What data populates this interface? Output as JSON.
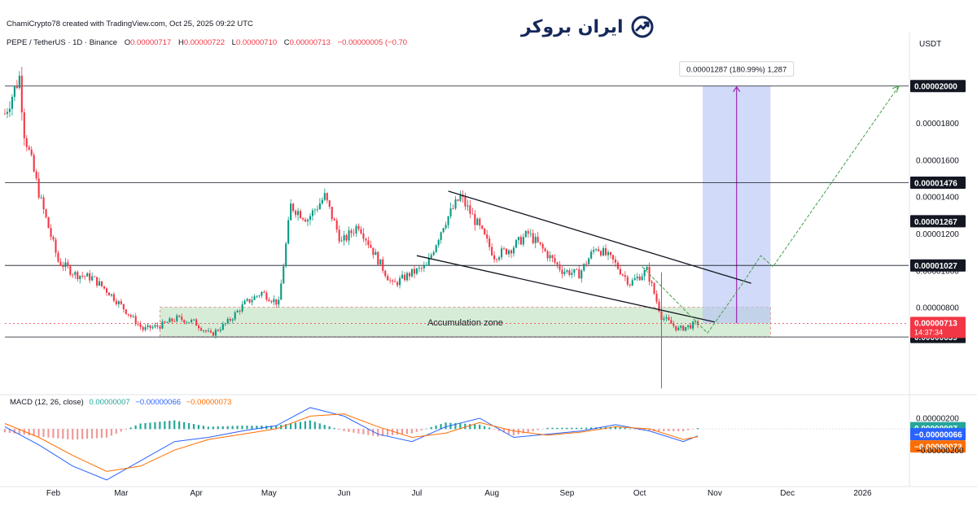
{
  "header": {
    "published": "ChamiCrypto78 created with TradingView.com, Oct 25, 2025 09:22 UTC",
    "symbol": "PEPE / TetherUS · 1D · Binance",
    "ohlc": [
      {
        "k": "O",
        "v": "0.00000717"
      },
      {
        "k": "H",
        "v": "0.00000722"
      },
      {
        "k": "L",
        "v": "0.00000710"
      },
      {
        "k": "C",
        "v": "0.00000713"
      }
    ],
    "change": "−0.00000005 (−0.70"
  },
  "logo": {
    "text": "ایران بروکر",
    "icon": "trend-up-icon"
  },
  "price_axis": {
    "currency": "USDT",
    "ticks": [
      "0.00001800",
      "0.00001600",
      "0.00001400",
      "0.00001200",
      "0.00001000",
      "0.00000800",
      "0.00000200"
    ],
    "tick_values": [
      1.8e-05,
      1.6e-05,
      1.4e-05,
      1.2e-05,
      1e-05,
      8e-06,
      2e-06
    ],
    "badges": [
      {
        "label": "0.00002000",
        "value": 2e-05,
        "style": "dark"
      },
      {
        "label": "0.00001476",
        "value": 1.476e-05,
        "style": "dark"
      },
      {
        "label": "0.00001267",
        "value": 1.267e-05,
        "style": "dark"
      },
      {
        "label": "0.00001027",
        "value": 1.027e-05,
        "style": "dark"
      },
      {
        "label": "0.00000639",
        "value": 6.39e-06,
        "style": "dark"
      }
    ],
    "last_price": {
      "label": "0.00000713",
      "countdown": "14:37:34",
      "value": 7.13e-06
    }
  },
  "time_axis": {
    "labels": [
      "Feb",
      "Mar",
      "Apr",
      "May",
      "Jun",
      "Jul",
      "Aug",
      "Sep",
      "Oct",
      "Nov",
      "Dec",
      "2026"
    ]
  },
  "annotations": {
    "accumulation_zone": "Accumulation zone",
    "measure_label": "0.00001287 (180.99%) 1,287"
  },
  "macd": {
    "title": "MACD (12, 26, close)",
    "values": [
      {
        "label": "0.00000007",
        "color": "#26a69a"
      },
      {
        "label": "−0.00000066",
        "color": "#2962ff"
      },
      {
        "label": "−0.00000073",
        "color": "#ff6d00"
      }
    ],
    "axis_tick": "−0.00000200",
    "axis_tick_value": -2e-06
  },
  "colors": {
    "up": "#089981",
    "down": "#f23645",
    "zone_fill": "#c8e6c9",
    "zone_border": "#e57373",
    "measure_fill": "#b3c2f5",
    "measure_line": "#9c27b0",
    "projection": "#43a047",
    "macd_line": "#2962ff",
    "signal_line": "#ff6d00",
    "hist_up": "#26a69a",
    "hist_down": "#ef9a9a"
  },
  "chart_data": {
    "type": "candlestick",
    "title": "PEPE / TetherUS · 1D · Binance",
    "x_range": [
      "2025-01-12",
      "2026-01-20"
    ],
    "ylim": [
      3.35e-06,
      2.193e-05
    ],
    "price_series": [
      {
        "date": "2025-01-12",
        "close": 1.85e-05
      },
      {
        "date": "2025-01-18",
        "close": 2.05e-05
      },
      {
        "date": "2025-01-20",
        "close": 1.75e-05
      },
      {
        "date": "2025-01-27",
        "close": 1.37e-05
      },
      {
        "date": "2025-02-03",
        "close": 1.05e-05
      },
      {
        "date": "2025-02-10",
        "close": 9.8e-06
      },
      {
        "date": "2025-02-17",
        "close": 9.6e-06
      },
      {
        "date": "2025-02-24",
        "close": 8.8e-06
      },
      {
        "date": "2025-03-03",
        "close": 7.8e-06
      },
      {
        "date": "2025-03-10",
        "close": 6.8e-06
      },
      {
        "date": "2025-03-17",
        "close": 7e-06
      },
      {
        "date": "2025-03-24",
        "close": 7.4e-06
      },
      {
        "date": "2025-03-31",
        "close": 7.2e-06
      },
      {
        "date": "2025-04-07",
        "close": 6.5e-06
      },
      {
        "date": "2025-04-14",
        "close": 7.2e-06
      },
      {
        "date": "2025-04-21",
        "close": 8.2e-06
      },
      {
        "date": "2025-04-28",
        "close": 8.8e-06
      },
      {
        "date": "2025-05-05",
        "close": 8.2e-06
      },
      {
        "date": "2025-05-10",
        "close": 1.35e-05
      },
      {
        "date": "2025-05-17",
        "close": 1.28e-05
      },
      {
        "date": "2025-05-24",
        "close": 1.4e-05
      },
      {
        "date": "2025-05-31",
        "close": 1.15e-05
      },
      {
        "date": "2025-06-07",
        "close": 1.25e-05
      },
      {
        "date": "2025-06-14",
        "close": 1.08e-05
      },
      {
        "date": "2025-06-21",
        "close": 9.2e-06
      },
      {
        "date": "2025-06-28",
        "close": 9.8e-06
      },
      {
        "date": "2025-07-05",
        "close": 1.02e-05
      },
      {
        "date": "2025-07-12",
        "close": 1.25e-05
      },
      {
        "date": "2025-07-19",
        "close": 1.4e-05
      },
      {
        "date": "2025-07-26",
        "close": 1.25e-05
      },
      {
        "date": "2025-08-02",
        "close": 1.08e-05
      },
      {
        "date": "2025-08-09",
        "close": 1.12e-05
      },
      {
        "date": "2025-08-16",
        "close": 1.2e-05
      },
      {
        "date": "2025-08-23",
        "close": 1.1e-05
      },
      {
        "date": "2025-08-30",
        "close": 1e-05
      },
      {
        "date": "2025-09-06",
        "close": 9.8e-06
      },
      {
        "date": "2025-09-13",
        "close": 1.13e-05
      },
      {
        "date": "2025-09-20",
        "close": 1.05e-05
      },
      {
        "date": "2025-09-27",
        "close": 9.3e-06
      },
      {
        "date": "2025-10-04",
        "close": 1e-05
      },
      {
        "date": "2025-10-10",
        "close": 7.5e-06
      },
      {
        "date": "2025-10-17",
        "close": 6.8e-06
      },
      {
        "date": "2025-10-25",
        "close": 7.13e-06
      }
    ],
    "horizontal_levels": [
      2e-05,
      1.476e-05,
      1.027e-05,
      6.39e-06
    ],
    "trendlines": [
      {
        "name": "upper",
        "from": {
          "date": "2025-07-14",
          "price": 1.43e-05
        },
        "to": {
          "date": "2025-11-16",
          "price": 9.3e-06
        }
      },
      {
        "name": "lower",
        "from": {
          "date": "2025-07-01",
          "price": 1.08e-05
        },
        "to": {
          "date": "2025-11-01",
          "price": 7.2e-06
        }
      }
    ],
    "zone": {
      "from": "2025-03-17",
      "to": "2025-11-24",
      "top": 8e-06,
      "bottom": 6.4e-06,
      "label": "Accumulation zone"
    },
    "measure": {
      "from": "2025-10-27",
      "to": "2025-11-24",
      "start_price": 7.13e-06,
      "end_price": 2e-05,
      "label": "0.00001287 (180.99%) 1,287"
    },
    "projection_path": [
      {
        "date": "2025-10-02",
        "price": 1.02e-05
      },
      {
        "date": "2025-10-25",
        "price": 7.13e-06
      },
      {
        "date": "2025-10-29",
        "price": 6.6e-06
      },
      {
        "date": "2025-11-12",
        "price": 9.2e-06
      },
      {
        "date": "2025-11-20",
        "price": 1.08e-05
      },
      {
        "date": "2025-11-25",
        "price": 1.02e-05
      },
      {
        "date": "2026-01-16",
        "price": 2e-05
      }
    ],
    "macd": {
      "ylim": [
        -5.2e-06,
        2.3e-06
      ],
      "macd_line": [
        {
          "date": "2025-01-12",
          "v": 2e-07
        },
        {
          "date": "2025-01-26",
          "v": -1.5e-06
        },
        {
          "date": "2025-02-09",
          "v": -3.5e-06
        },
        {
          "date": "2025-02-23",
          "v": -4.8e-06
        },
        {
          "date": "2025-03-09",
          "v": -3e-06
        },
        {
          "date": "2025-03-23",
          "v": -1.2e-06
        },
        {
          "date": "2025-04-06",
          "v": -8e-07
        },
        {
          "date": "2025-04-20",
          "v": -2e-07
        },
        {
          "date": "2025-05-04",
          "v": 3e-07
        },
        {
          "date": "2025-05-18",
          "v": 2e-06
        },
        {
          "date": "2025-06-01",
          "v": 1.2e-06
        },
        {
          "date": "2025-06-15",
          "v": -5e-07
        },
        {
          "date": "2025-06-29",
          "v": -1.2e-06
        },
        {
          "date": "2025-07-13",
          "v": 2e-07
        },
        {
          "date": "2025-07-27",
          "v": 1e-06
        },
        {
          "date": "2025-08-10",
          "v": -8e-07
        },
        {
          "date": "2025-08-24",
          "v": -5e-07
        },
        {
          "date": "2025-09-07",
          "v": -2e-07
        },
        {
          "date": "2025-09-21",
          "v": 4e-07
        },
        {
          "date": "2025-10-05",
          "v": -2e-07
        },
        {
          "date": "2025-10-19",
          "v": -1.2e-06
        },
        {
          "date": "2025-10-25",
          "v": -6.6e-07
        }
      ],
      "signal_line": [
        {
          "date": "2025-01-12",
          "v": 5e-07
        },
        {
          "date": "2025-01-26",
          "v": -8e-07
        },
        {
          "date": "2025-02-09",
          "v": -2.5e-06
        },
        {
          "date": "2025-02-23",
          "v": -4e-06
        },
        {
          "date": "2025-03-09",
          "v": -3.5e-06
        },
        {
          "date": "2025-03-23",
          "v": -2e-06
        },
        {
          "date": "2025-04-06",
          "v": -1e-06
        },
        {
          "date": "2025-04-20",
          "v": -5e-07
        },
        {
          "date": "2025-05-04",
          "v": 0.0
        },
        {
          "date": "2025-05-18",
          "v": 1.2e-06
        },
        {
          "date": "2025-06-01",
          "v": 1.4e-06
        },
        {
          "date": "2025-06-15",
          "v": 2e-07
        },
        {
          "date": "2025-06-29",
          "v": -8e-07
        },
        {
          "date": "2025-07-13",
          "v": -4e-07
        },
        {
          "date": "2025-07-27",
          "v": 6e-07
        },
        {
          "date": "2025-08-10",
          "v": -2e-07
        },
        {
          "date": "2025-08-24",
          "v": -6e-07
        },
        {
          "date": "2025-09-07",
          "v": -3e-07
        },
        {
          "date": "2025-09-21",
          "v": 2e-07
        },
        {
          "date": "2025-10-05",
          "v": 0.0
        },
        {
          "date": "2025-10-19",
          "v": -1e-06
        },
        {
          "date": "2025-10-25",
          "v": -7.3e-07
        }
      ]
    }
  }
}
